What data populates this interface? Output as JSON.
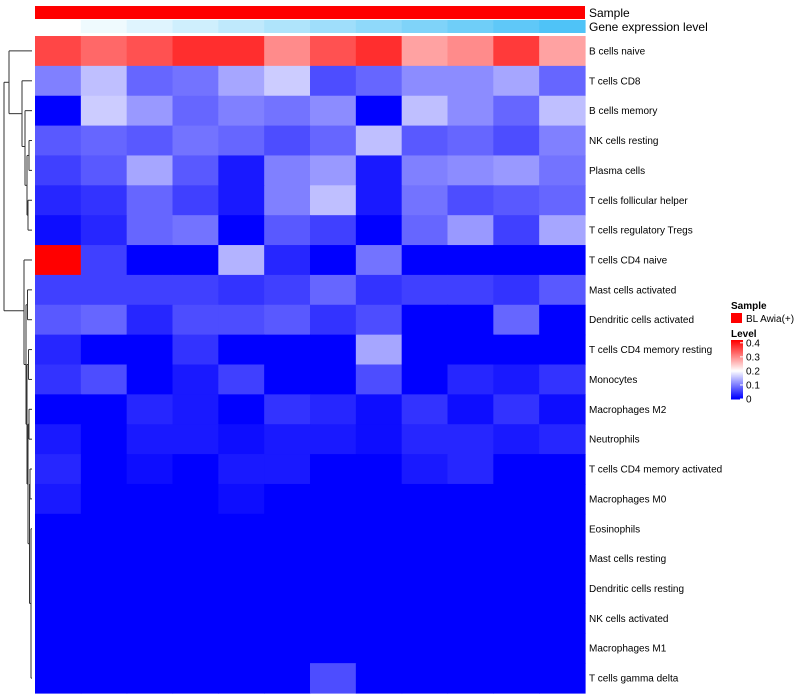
{
  "chart_data": {
    "type": "heatmap",
    "title": "",
    "annotations": {
      "sample_label": "Sample",
      "expression_label": "Gene expression level"
    },
    "columns": 12,
    "rows": [
      "B cells naive",
      "T cells CD8",
      "B cells memory",
      "NK cells resting",
      "Plasma cells",
      "T cells follicular helper",
      "T cells regulatory  Tregs",
      "T cells CD4 naive",
      "Mast cells activated",
      "Dendritic cells activated",
      "T cells CD4 memory resting",
      "Monocytes",
      "Macrophages M2",
      "Neutrophils",
      "T cells CD4 memory activated",
      "Macrophages M0",
      "Eosinophils",
      "Mast cells resting",
      "Dendritic cells resting",
      "NK cells activated",
      "Macrophages M1",
      "T cells gamma delta"
    ],
    "values": [
      [
        0.36,
        0.33,
        0.35,
        0.38,
        0.38,
        0.3,
        0.35,
        0.38,
        0.28,
        0.3,
        0.37,
        0.28
      ],
      [
        0.1,
        0.15,
        0.08,
        0.09,
        0.13,
        0.16,
        0.06,
        0.08,
        0.11,
        0.11,
        0.13,
        0.08
      ],
      [
        0.0,
        0.16,
        0.12,
        0.08,
        0.1,
        0.09,
        0.11,
        0.0,
        0.15,
        0.11,
        0.08,
        0.15
      ],
      [
        0.07,
        0.08,
        0.07,
        0.09,
        0.08,
        0.06,
        0.08,
        0.15,
        0.07,
        0.08,
        0.06,
        0.1
      ],
      [
        0.05,
        0.07,
        0.13,
        0.07,
        0.02,
        0.1,
        0.12,
        0.02,
        0.1,
        0.11,
        0.12,
        0.09
      ],
      [
        0.03,
        0.04,
        0.08,
        0.05,
        0.02,
        0.1,
        0.15,
        0.02,
        0.09,
        0.06,
        0.07,
        0.08
      ],
      [
        0.01,
        0.03,
        0.08,
        0.09,
        0.0,
        0.07,
        0.05,
        0.0,
        0.08,
        0.12,
        0.05,
        0.13
      ],
      [
        0.42,
        0.05,
        0.0,
        0.0,
        0.14,
        0.03,
        0.0,
        0.09,
        0.0,
        0.0,
        0.0,
        0.0
      ],
      [
        0.05,
        0.05,
        0.05,
        0.05,
        0.04,
        0.05,
        0.08,
        0.04,
        0.05,
        0.05,
        0.04,
        0.07
      ],
      [
        0.07,
        0.08,
        0.03,
        0.06,
        0.06,
        0.07,
        0.04,
        0.06,
        0.0,
        0.0,
        0.08,
        0.0
      ],
      [
        0.03,
        0.0,
        0.0,
        0.04,
        0.0,
        0.0,
        0.0,
        0.13,
        0.0,
        0.0,
        0.0,
        0.0
      ],
      [
        0.04,
        0.06,
        0.0,
        0.02,
        0.05,
        0.0,
        0.0,
        0.06,
        0.0,
        0.03,
        0.02,
        0.04
      ],
      [
        0.0,
        0.0,
        0.03,
        0.02,
        0.0,
        0.04,
        0.03,
        0.01,
        0.04,
        0.01,
        0.04,
        0.01
      ],
      [
        0.02,
        0.0,
        0.02,
        0.02,
        0.01,
        0.02,
        0.02,
        0.01,
        0.03,
        0.03,
        0.02,
        0.03
      ],
      [
        0.03,
        0.0,
        0.01,
        0.0,
        0.02,
        0.02,
        0.0,
        0.0,
        0.02,
        0.03,
        0.0,
        0.0
      ],
      [
        0.02,
        0.0,
        0.0,
        0.0,
        0.01,
        0.0,
        0.0,
        0.0,
        0.0,
        0.0,
        0.0,
        0.0
      ],
      [
        0.0,
        0.0,
        0.0,
        0.0,
        0.0,
        0.0,
        0.0,
        0.0,
        0.0,
        0.0,
        0.0,
        0.0
      ],
      [
        0.0,
        0.0,
        0.0,
        0.0,
        0.0,
        0.0,
        0.0,
        0.0,
        0.0,
        0.0,
        0.0,
        0.0
      ],
      [
        0.0,
        0.0,
        0.0,
        0.0,
        0.0,
        0.0,
        0.0,
        0.0,
        0.0,
        0.0,
        0.0,
        0.0
      ],
      [
        0.0,
        0.0,
        0.0,
        0.0,
        0.0,
        0.0,
        0.0,
        0.0,
        0.0,
        0.0,
        0.0,
        0.0
      ],
      [
        0.0,
        0.0,
        0.0,
        0.0,
        0.0,
        0.0,
        0.0,
        0.0,
        0.0,
        0.0,
        0.0,
        0.0
      ],
      [
        0.0,
        0.0,
        0.0,
        0.0,
        0.0,
        0.0,
        0.06,
        0.0,
        0.0,
        0.0,
        0.0,
        0.0
      ]
    ],
    "color_scale": {
      "min": 0,
      "mid": 0.2,
      "max": 0.42,
      "colors": [
        "#0000ff",
        "#ffffff",
        "#ff0000"
      ]
    },
    "expression_gradient": [
      "#ffffff",
      "#4fc3f7"
    ],
    "sample_color": "#ff0000",
    "legend": {
      "placement": "right",
      "sample_title": "Sample",
      "sample_entry": "BL Awia(+)",
      "level_title": "Level",
      "level_ticks": [
        0.4,
        0.3,
        0.2,
        0.1,
        0
      ],
      "level_tick_labels": [
        "0.4",
        "0.3",
        "0.2",
        "0.1",
        "0"
      ]
    },
    "dendrogram": "rows"
  }
}
